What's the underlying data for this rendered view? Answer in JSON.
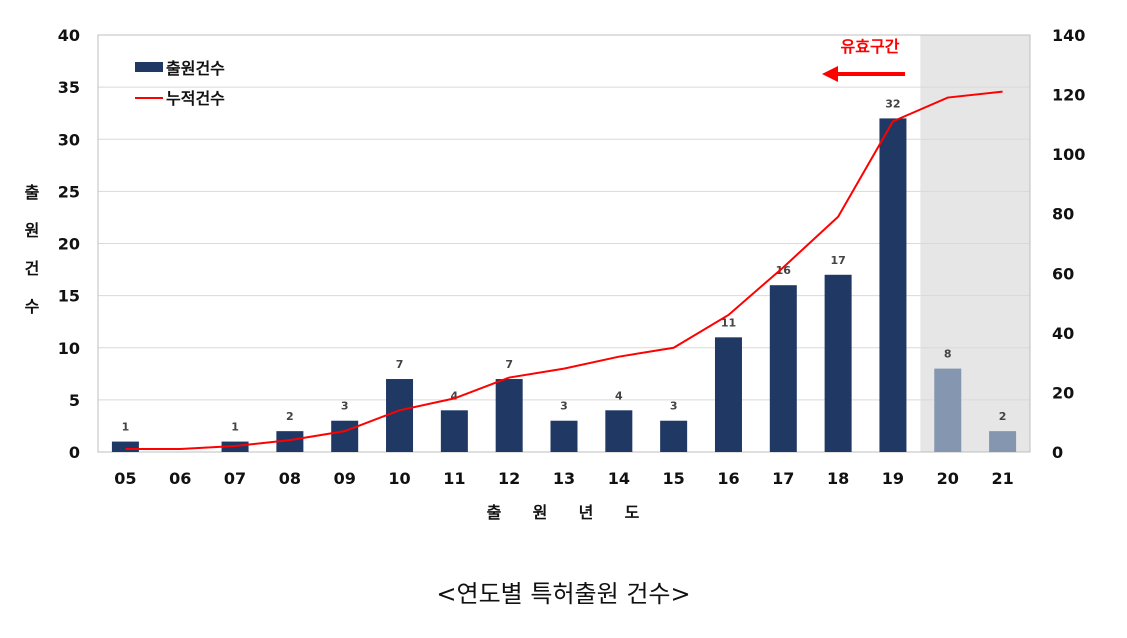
{
  "chart_data": {
    "type": "bar",
    "categories": [
      "05",
      "06",
      "07",
      "08",
      "09",
      "10",
      "11",
      "12",
      "13",
      "14",
      "15",
      "16",
      "17",
      "18",
      "19",
      "20",
      "21"
    ],
    "series": [
      {
        "name": "출원건수",
        "kind": "bar",
        "axis": "left",
        "values": [
          1,
          0,
          1,
          2,
          3,
          7,
          4,
          7,
          3,
          4,
          3,
          11,
          16,
          17,
          32,
          8,
          2
        ],
        "labels": [
          "1",
          "",
          "1",
          "2",
          "3",
          "7",
          "4",
          "7",
          "3",
          "4",
          "3",
          "11",
          "16",
          "17",
          "32",
          "8",
          "2"
        ],
        "color": "#1f3864",
        "faded_color": "#8496b0"
      },
      {
        "name": "누적건수",
        "kind": "line",
        "axis": "right",
        "values": [
          1,
          1,
          2,
          4,
          7,
          14,
          18,
          25,
          28,
          32,
          35,
          46,
          62,
          79,
          111,
          119,
          121
        ],
        "color": "#ff0000"
      }
    ],
    "ylabel": "출원건수",
    "xlabel": "출원년도",
    "ylim": [
      0,
      40
    ],
    "yticks": [
      0,
      5,
      10,
      15,
      20,
      25,
      30,
      35,
      40
    ],
    "y2lim": [
      0,
      140
    ],
    "y2ticks": [
      0,
      20,
      40,
      60,
      80,
      100,
      120,
      140
    ],
    "grid": true,
    "legend_position": "top-left",
    "shaded_categories": [
      "20",
      "21"
    ],
    "shade_color": "#e7e6e6",
    "annotation": {
      "text": "유효구간",
      "color": "#ff0000"
    }
  },
  "caption": "<연도별 특허출원 건수>"
}
